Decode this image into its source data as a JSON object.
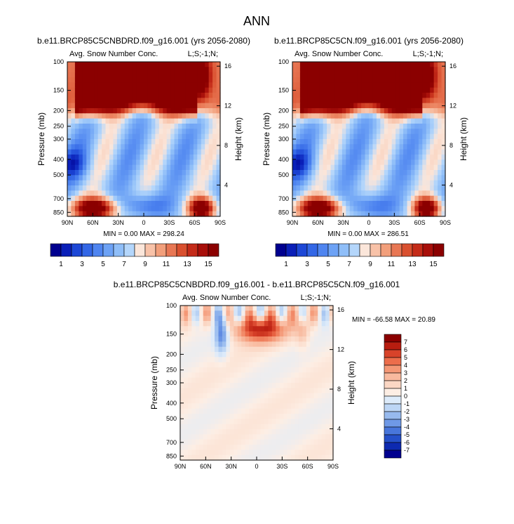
{
  "page_title": "ANN",
  "chart_data": [
    {
      "type": "heatmap",
      "title": "b.e11.BRCP85C5CNBDRD.f09_g16.001 (yrs 2056-2080)",
      "left_label": "Avg. Snow Number Conc.",
      "right_label": "L;S;-1;N;",
      "xlabel": "",
      "ylabel": "Pressure (mb)",
      "y2label": "Height (km)",
      "x_ticks": [
        "90N",
        "60N",
        "30N",
        "0",
        "30S",
        "60S",
        "90S"
      ],
      "y_ticks": [
        "100",
        "150",
        "200",
        "250",
        "300",
        "400",
        "500",
        "700",
        "850"
      ],
      "y2_ticks": [
        "16",
        "12",
        "8",
        "4"
      ],
      "stats": {
        "min_label": "MIN =",
        "min": "0.00",
        "max_label": "MAX =",
        "max": "298.24"
      },
      "pattern": "model"
    },
    {
      "type": "heatmap",
      "title": "b.e11.BRCP85C5CN.f09_g16.001 (yrs 2056-2080)",
      "left_label": "Avg. Snow Number Conc.",
      "right_label": "L;S;-1;N;",
      "xlabel": "",
      "ylabel": "Pressure (mb)",
      "y2label": "Height (km)",
      "x_ticks": [
        "90N",
        "60N",
        "30N",
        "0",
        "30S",
        "60S",
        "90S"
      ],
      "y_ticks": [
        "100",
        "150",
        "200",
        "250",
        "300",
        "400",
        "500",
        "700",
        "850"
      ],
      "y2_ticks": [
        "16",
        "12",
        "8",
        "4"
      ],
      "stats": {
        "min_label": "MIN =",
        "min": "0.00",
        "max_label": "MAX =",
        "max": "286.51"
      },
      "pattern": "model"
    },
    {
      "type": "heatmap",
      "title": "b.e11.BRCP85C5CNBDRD.f09_g16.001 - b.e11.BRCP85C5CN.f09_g16.001",
      "left_label": "Avg. Snow Number Conc.",
      "right_label": "L;S;-1;N;",
      "xlabel": "",
      "ylabel": "Pressure (mb)",
      "y2label": "Height (km)",
      "x_ticks": [
        "90N",
        "60N",
        "30N",
        "0",
        "30S",
        "60S",
        "90S"
      ],
      "y_ticks": [
        "100",
        "150",
        "200",
        "250",
        "300",
        "400",
        "500",
        "700",
        "850"
      ],
      "y2_ticks": [
        "16",
        "12",
        "8",
        "4"
      ],
      "stats": {
        "min_label": "MIN =",
        "min": "-66.58",
        "max_label": "MAX =",
        "max": "20.89"
      },
      "pattern": "diff"
    }
  ],
  "colorbar_top": {
    "colors": [
      "#00008f",
      "#0a1fb8",
      "#1d47d6",
      "#3367e6",
      "#4f85f0",
      "#6da2f5",
      "#8fbef8",
      "#b4d6fb",
      "#fbe6da",
      "#f8c2a8",
      "#f29f7b",
      "#e87754",
      "#d9502f",
      "#c42b19",
      "#a80f0a",
      "#8b0000"
    ],
    "labels": [
      "1",
      "3",
      "5",
      "7",
      "9",
      "11",
      "13",
      "15"
    ]
  },
  "colorbar_diff": {
    "colors": [
      "#8b0000",
      "#b81d10",
      "#d8432a",
      "#ec6d4b",
      "#f49775",
      "#f8b99e",
      "#fbd7c4",
      "#fdeee4",
      "#ddebfa",
      "#bdd6f5",
      "#97baee",
      "#6f99e6",
      "#4876db",
      "#2550c9",
      "#0d2ab0",
      "#00008f"
    ],
    "labels": [
      "7",
      "6",
      "5",
      "4",
      "3",
      "2",
      "1",
      "0",
      "-1",
      "-2",
      "-3",
      "-4",
      "-5",
      "-6",
      "-7"
    ]
  }
}
